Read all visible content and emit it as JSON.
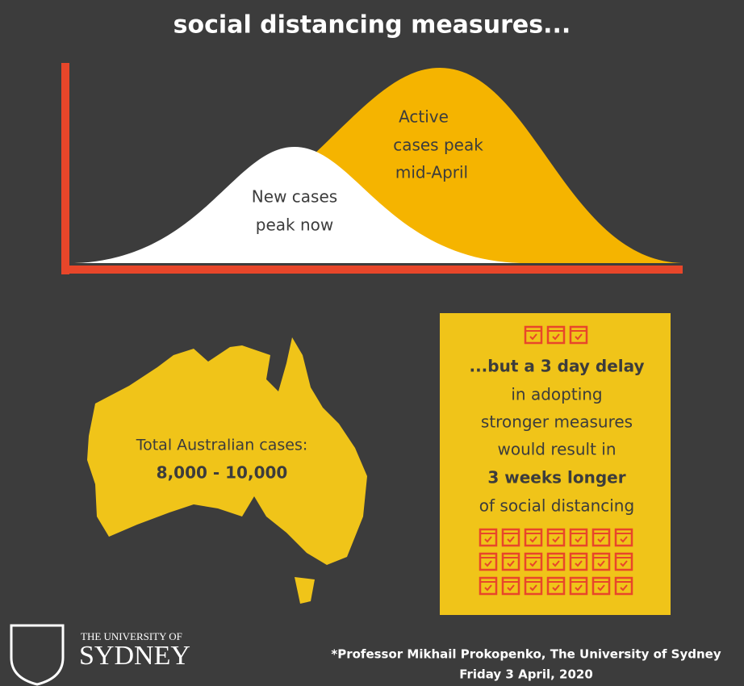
{
  "header": {
    "title": "social distancing measures..."
  },
  "curves": {
    "new_cases": [
      "New cases",
      "peak now"
    ],
    "active_cases": [
      "Active",
      "cases peak",
      "mid-April"
    ]
  },
  "map": {
    "label": "Total Australian cases:",
    "value": "8,000 - 10,000"
  },
  "delay_box": {
    "lines": [
      "...but a 3 day delay",
      "in adopting",
      "stronger measures",
      "would result in",
      "3 weeks longer",
      "of social distancing"
    ]
  },
  "logo": {
    "line1": "THE UNIVERSITY OF",
    "line2": "SYDNEY"
  },
  "credit": {
    "author": "*Professor Mikhail Prokopenko, The University of Sydney",
    "date": "Friday 3 April, 2020"
  }
}
